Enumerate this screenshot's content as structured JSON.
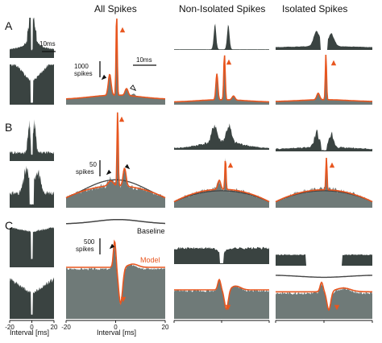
{
  "colors": {
    "histogram": "#6f7a78",
    "histogram_dark": "#3a4341",
    "model_curve": "#e8561f",
    "baseline_curve": "#444444",
    "raw_trace": "#c9cdcc"
  },
  "labels": {
    "col_all": "All Spikes",
    "col_non": "Non-Isolated Spikes",
    "col_iso": "Isolated Spikes",
    "row_a": "A",
    "row_b": "B",
    "row_c": "C",
    "scale_10ms_small": "10ms",
    "scale_10ms_big": "10ms",
    "scale_a_value": "1000",
    "scale_a_unit": "spikes",
    "scale_b_value": "50",
    "scale_b_unit": "spikes",
    "scale_c_value": "500",
    "scale_c_unit": "spikes",
    "baseline": "Baseline",
    "model": "Model",
    "xlabel_left": "Interval [ms]",
    "xlabel_main": "Interval [ms]",
    "xticks": [
      "-20",
      "0",
      "20"
    ]
  },
  "chart_data": {
    "type": "bar",
    "xlabel": "Interval [ms]",
    "xlim": [
      -20,
      20
    ],
    "x_ticks": [
      -20,
      0,
      20
    ],
    "scale_bars": {
      "row_A": {
        "value": 1000,
        "unit": "spikes",
        "time_ms": 10
      },
      "row_B": {
        "value": 50,
        "unit": "spikes"
      },
      "row_C": {
        "value": 500,
        "unit": "spikes"
      }
    },
    "panels": [
      {
        "row": "A",
        "column": "All Spikes",
        "peaks_ms": [
          -2.5,
          0.5,
          2.5,
          4.5
        ],
        "marked_peak_ms": 1.0
      },
      {
        "row": "A",
        "column": "Non-Isolated Spikes",
        "peaks_ms": [
          -1.5,
          1.0,
          3.0
        ]
      },
      {
        "row": "A",
        "column": "Isolated Spikes",
        "peaks_ms": [
          -1.0,
          1.0
        ]
      },
      {
        "row": "B",
        "column": "All Spikes",
        "peaks_ms": [
          -2.0,
          1.0,
          3.0
        ]
      },
      {
        "row": "B",
        "column": "Non-Isolated Spikes",
        "peaks_ms": [
          -1.0,
          1.5
        ]
      },
      {
        "row": "B",
        "column": "Isolated Spikes",
        "peaks_ms": [
          1.0
        ]
      },
      {
        "row": "C",
        "column": "All Spikes",
        "series": [
          "Baseline",
          "Model"
        ],
        "trough_ms": 1.5
      },
      {
        "row": "C",
        "column": "Non-Isolated Spikes",
        "trough_ms": 1.5
      },
      {
        "row": "C",
        "column": "Isolated Spikes",
        "trough_ms": 1.5
      }
    ]
  }
}
